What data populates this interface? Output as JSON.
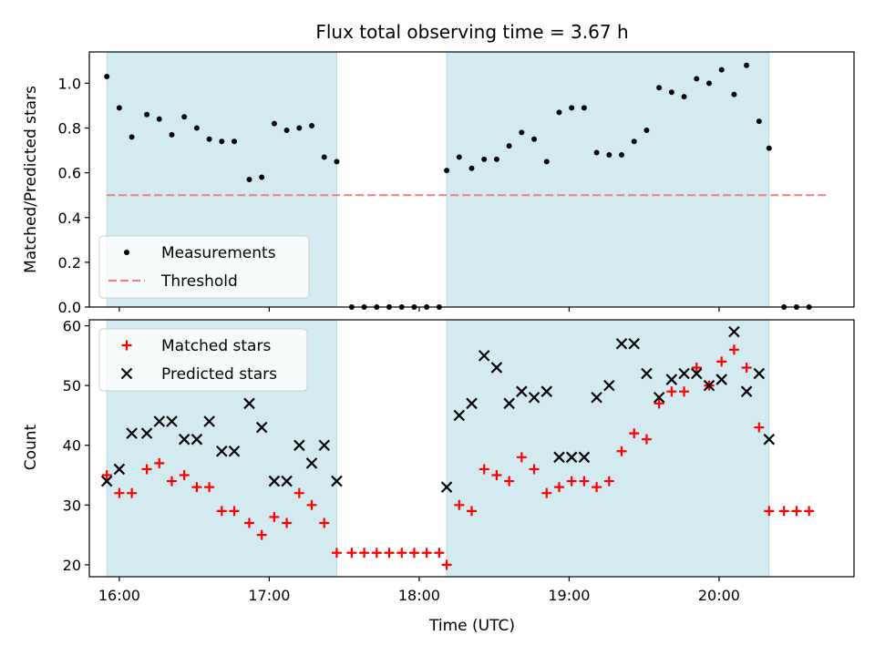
{
  "chart_data": {
    "type": "scatter",
    "title": "Flux total observing time = 3.67 h",
    "xlabel": "Time (UTC)",
    "xlim": [
      "15:48",
      "20:54"
    ],
    "x_ticks": [
      "16:00",
      "17:00",
      "18:00",
      "19:00",
      "20:00"
    ],
    "shaded_intervals": [
      [
        "15:55",
        "17:27"
      ],
      [
        "18:11",
        "20:20"
      ]
    ],
    "shade_color": "#d3eaf0",
    "panels": [
      {
        "ylabel": "Matched/Predicted stars",
        "ylim": [
          0,
          1.14
        ],
        "y_ticks": [
          "0.0",
          "0.2",
          "0.4",
          "0.6",
          "0.8",
          "1.0"
        ],
        "legend": "lower-left",
        "series": [
          {
            "name": "Measurements",
            "marker": "dot",
            "color": "#000000",
            "points": [
              [
                "15:55",
                1.03
              ],
              [
                "15:60",
                0.89
              ],
              [
                "16:05",
                0.76
              ],
              [
                "16:11",
                0.86
              ],
              [
                "16:16",
                0.84
              ],
              [
                "16:21",
                0.77
              ],
              [
                "16:26",
                0.85
              ],
              [
                "16:31",
                0.8
              ],
              [
                "16:36",
                0.75
              ],
              [
                "16:41",
                0.74
              ],
              [
                "16:46",
                0.74
              ],
              [
                "16:52",
                0.57
              ],
              [
                "16:57",
                0.58
              ],
              [
                "17:02",
                0.82
              ],
              [
                "17:07",
                0.79
              ],
              [
                "17:12",
                0.8
              ],
              [
                "17:17",
                0.81
              ],
              [
                "17:22",
                0.67
              ],
              [
                "17:27",
                0.65
              ],
              [
                "17:33",
                0.0
              ],
              [
                "17:38",
                0.0
              ],
              [
                "17:43",
                0.0
              ],
              [
                "17:48",
                0.0
              ],
              [
                "17:53",
                0.0
              ],
              [
                "17:58",
                0.0
              ],
              [
                "18:03",
                0.0
              ],
              [
                "18:08",
                0.0
              ],
              [
                "18:11",
                0.61
              ],
              [
                "18:16",
                0.67
              ],
              [
                "18:21",
                0.62
              ],
              [
                "18:26",
                0.66
              ],
              [
                "18:31",
                0.66
              ],
              [
                "18:36",
                0.72
              ],
              [
                "18:41",
                0.78
              ],
              [
                "18:46",
                0.75
              ],
              [
                "18:51",
                0.65
              ],
              [
                "18:56",
                0.87
              ],
              [
                "19:01",
                0.89
              ],
              [
                "19:06",
                0.89
              ],
              [
                "19:11",
                0.69
              ],
              [
                "19:16",
                0.68
              ],
              [
                "19:21",
                0.68
              ],
              [
                "19:26",
                0.74
              ],
              [
                "19:31",
                0.79
              ],
              [
                "19:36",
                0.98
              ],
              [
                "19:41",
                0.96
              ],
              [
                "19:46",
                0.94
              ],
              [
                "19:51",
                1.02
              ],
              [
                "19:56",
                1.0
              ],
              [
                "20:01",
                1.06
              ],
              [
                "20:06",
                0.95
              ],
              [
                "20:11",
                1.08
              ],
              [
                "20:16",
                0.83
              ],
              [
                "20:20",
                0.71
              ],
              [
                "20:26",
                0.0
              ],
              [
                "20:31",
                0.0
              ],
              [
                "20:36",
                0.0
              ]
            ]
          },
          {
            "name": "Threshold",
            "marker": "dashed-line",
            "color": "#f08080",
            "points": [
              [
                "15:55",
                0.5
              ],
              [
                "20:43",
                0.5
              ]
            ]
          }
        ]
      },
      {
        "ylabel": "Count",
        "ylim": [
          18,
          61
        ],
        "y_ticks": [
          "20",
          "30",
          "40",
          "50",
          "60"
        ],
        "legend": "top-left",
        "series": [
          {
            "name": "Matched stars",
            "marker": "plus",
            "color": "#ff0000",
            "points": [
              [
                "15:55",
                35
              ],
              [
                "15:60",
                32
              ],
              [
                "16:05",
                32
              ],
              [
                "16:11",
                36
              ],
              [
                "16:16",
                37
              ],
              [
                "16:21",
                34
              ],
              [
                "16:26",
                35
              ],
              [
                "16:31",
                33
              ],
              [
                "16:36",
                33
              ],
              [
                "16:41",
                29
              ],
              [
                "16:46",
                29
              ],
              [
                "16:52",
                27
              ],
              [
                "16:57",
                25
              ],
              [
                "17:02",
                28
              ],
              [
                "17:07",
                27
              ],
              [
                "17:12",
                32
              ],
              [
                "17:17",
                30
              ],
              [
                "17:22",
                27
              ],
              [
                "17:27",
                22
              ],
              [
                "17:33",
                22
              ],
              [
                "17:38",
                22
              ],
              [
                "17:43",
                22
              ],
              [
                "17:48",
                22
              ],
              [
                "17:53",
                22
              ],
              [
                "17:58",
                22
              ],
              [
                "18:03",
                22
              ],
              [
                "18:08",
                22
              ],
              [
                "18:11",
                20
              ],
              [
                "18:16",
                30
              ],
              [
                "18:21",
                29
              ],
              [
                "18:26",
                36
              ],
              [
                "18:31",
                35
              ],
              [
                "18:36",
                34
              ],
              [
                "18:41",
                38
              ],
              [
                "18:46",
                36
              ],
              [
                "18:51",
                32
              ],
              [
                "18:56",
                33
              ],
              [
                "19:01",
                34
              ],
              [
                "19:06",
                34
              ],
              [
                "19:11",
                33
              ],
              [
                "19:16",
                34
              ],
              [
                "19:21",
                39
              ],
              [
                "19:26",
                42
              ],
              [
                "19:31",
                41
              ],
              [
                "19:36",
                47
              ],
              [
                "19:41",
                49
              ],
              [
                "19:46",
                49
              ],
              [
                "19:51",
                53
              ],
              [
                "19:56",
                50
              ],
              [
                "20:01",
                54
              ],
              [
                "20:06",
                56
              ],
              [
                "20:11",
                53
              ],
              [
                "20:16",
                43
              ],
              [
                "20:20",
                29
              ],
              [
                "20:26",
                29
              ],
              [
                "20:31",
                29
              ],
              [
                "20:36",
                29
              ]
            ]
          },
          {
            "name": "Predicted stars",
            "marker": "x",
            "color": "#000000",
            "points": [
              [
                "15:55",
                34
              ],
              [
                "15:60",
                36
              ],
              [
                "16:05",
                42
              ],
              [
                "16:11",
                42
              ],
              [
                "16:16",
                44
              ],
              [
                "16:21",
                44
              ],
              [
                "16:26",
                41
              ],
              [
                "16:31",
                41
              ],
              [
                "16:36",
                44
              ],
              [
                "16:41",
                39
              ],
              [
                "16:46",
                39
              ],
              [
                "16:52",
                47
              ],
              [
                "16:57",
                43
              ],
              [
                "17:02",
                34
              ],
              [
                "17:07",
                34
              ],
              [
                "17:12",
                40
              ],
              [
                "17:17",
                37
              ],
              [
                "17:22",
                40
              ],
              [
                "17:27",
                34
              ],
              [
                "18:11",
                33
              ],
              [
                "18:16",
                45
              ],
              [
                "18:21",
                47
              ],
              [
                "18:26",
                55
              ],
              [
                "18:31",
                53
              ],
              [
                "18:36",
                47
              ],
              [
                "18:41",
                49
              ],
              [
                "18:46",
                48
              ],
              [
                "18:51",
                49
              ],
              [
                "18:56",
                38
              ],
              [
                "19:01",
                38
              ],
              [
                "19:06",
                38
              ],
              [
                "19:11",
                48
              ],
              [
                "19:16",
                50
              ],
              [
                "19:21",
                57
              ],
              [
                "19:26",
                57
              ],
              [
                "19:31",
                52
              ],
              [
                "19:36",
                48
              ],
              [
                "19:41",
                51
              ],
              [
                "19:46",
                52
              ],
              [
                "19:51",
                52
              ],
              [
                "19:56",
                50
              ],
              [
                "20:01",
                51
              ],
              [
                "20:06",
                59
              ],
              [
                "20:11",
                49
              ],
              [
                "20:16",
                52
              ],
              [
                "20:20",
                41
              ]
            ]
          }
        ]
      }
    ]
  }
}
